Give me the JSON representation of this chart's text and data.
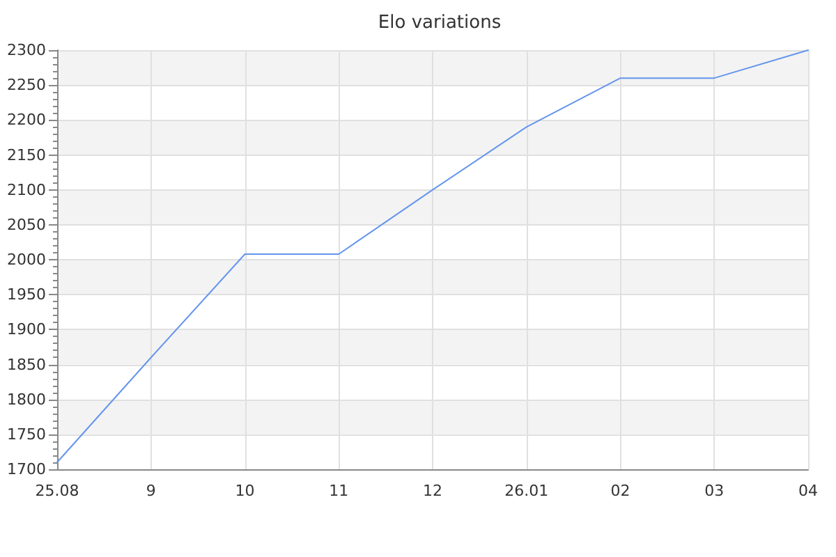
{
  "chart_data": {
    "type": "line",
    "title": "Elo variations",
    "categories": [
      "25.08",
      "9",
      "10",
      "11",
      "12",
      "26.01",
      "02",
      "03",
      "04"
    ],
    "series": [
      {
        "color": "#6495ed",
        "values": [
          1710,
          1860,
          2008,
          2008,
          2100,
          2190,
          2260,
          2260,
          2300
        ]
      }
    ],
    "ylim": [
      1700,
      2300
    ],
    "yticks": [
      1700,
      {
        "value": 1710,
        "label": null
      },
      {
        "value": 1720,
        "label": null
      },
      {
        "value": 1730,
        "label": null
      },
      {
        "value": 1740,
        "label": null
      },
      1750,
      {
        "value": 1760,
        "label": null
      },
      {
        "value": 1770,
        "label": null
      },
      {
        "value": 1780,
        "label": null
      },
      {
        "value": 1790,
        "label": null
      },
      1800,
      {
        "value": 1810,
        "label": null
      },
      {
        "value": 1820,
        "label": null
      },
      {
        "value": 1830,
        "label": null
      },
      {
        "value": 1840,
        "label": null
      },
      1850,
      {
        "value": 1860,
        "label": null
      },
      {
        "value": 1870,
        "label": null
      },
      {
        "value": 1880,
        "label": null
      },
      {
        "value": 1890,
        "label": null
      },
      1900,
      {
        "value": 1910,
        "label": null
      },
      {
        "value": 1920,
        "label": null
      },
      {
        "value": 1930,
        "label": null
      },
      {
        "value": 1940,
        "label": null
      },
      1950,
      {
        "value": 1960,
        "label": null
      },
      {
        "value": 1970,
        "label": null
      },
      {
        "value": 1980,
        "label": null
      },
      {
        "value": 1990,
        "label": null
      },
      2000,
      {
        "value": 2010,
        "label": null
      },
      {
        "value": 2020,
        "label": null
      },
      {
        "value": 2030,
        "label": null
      },
      {
        "value": 2040,
        "label": null
      },
      2050,
      {
        "value": 2060,
        "label": null
      },
      {
        "value": 2070,
        "label": null
      },
      {
        "value": 2080,
        "label": null
      },
      {
        "value": 2090,
        "label": null
      },
      2100,
      {
        "value": 2110,
        "label": null
      },
      {
        "value": 2120,
        "label": null
      },
      {
        "value": 2130,
        "label": null
      },
      {
        "value": 2140,
        "label": null
      },
      2150,
      {
        "value": 2160,
        "label": null
      },
      {
        "value": 2170,
        "label": null
      },
      {
        "value": 2180,
        "label": null
      },
      {
        "value": 2190,
        "label": null
      },
      2200,
      {
        "value": 2210,
        "label": null
      },
      {
        "value": 2220,
        "label": null
      },
      {
        "value": 2230,
        "label": null
      },
      {
        "value": 2240,
        "label": null
      },
      2250,
      {
        "value": 2260,
        "label": null
      },
      {
        "value": 2270,
        "label": null
      },
      {
        "value": 2280,
        "label": null
      },
      {
        "value": 2290,
        "label": null
      },
      2300
    ],
    "grid": true,
    "marker": "none",
    "line_style": "solid"
  }
}
